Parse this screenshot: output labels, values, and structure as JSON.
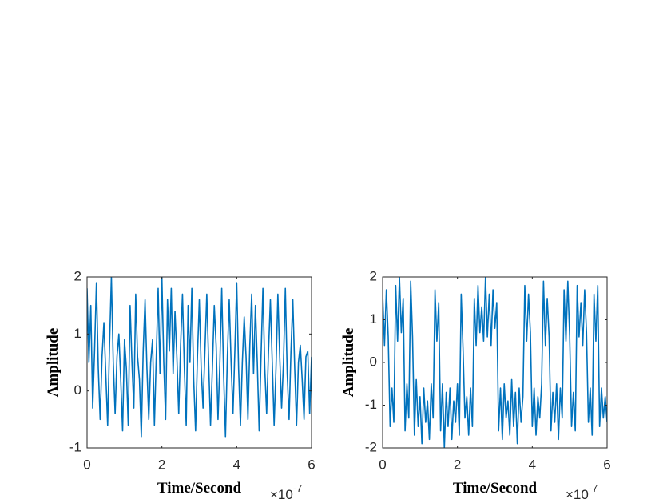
{
  "chart_data": [
    {
      "type": "line",
      "xlabel": "Time/Second",
      "ylabel": "Amplitude",
      "x_exponent": {
        "base": "×10",
        "power": "-7"
      },
      "xlim": [
        0,
        6
      ],
      "xticks": [
        0,
        2,
        4,
        6
      ],
      "ylim": [
        -1,
        2
      ],
      "yticks": [
        -1,
        0,
        1,
        2
      ],
      "grid": false,
      "x": [
        0,
        0.05,
        0.1,
        0.15,
        0.2,
        0.25,
        0.3,
        0.35,
        0.4,
        0.45,
        0.5,
        0.55,
        0.6,
        0.65,
        0.7,
        0.75,
        0.8,
        0.85,
        0.9,
        0.95,
        1,
        1.05,
        1.1,
        1.15,
        1.2,
        1.25,
        1.3,
        1.35,
        1.4,
        1.45,
        1.5,
        1.55,
        1.6,
        1.65,
        1.7,
        1.75,
        1.8,
        1.85,
        1.9,
        1.95,
        2,
        2.05,
        2.1,
        2.15,
        2.2,
        2.25,
        2.3,
        2.35,
        2.4,
        2.45,
        2.5,
        2.55,
        2.6,
        2.65,
        2.7,
        2.75,
        2.8,
        2.85,
        2.9,
        2.95,
        3,
        3.05,
        3.1,
        3.15,
        3.2,
        3.25,
        3.3,
        3.35,
        3.4,
        3.45,
        3.5,
        3.55,
        3.6,
        3.65,
        3.7,
        3.75,
        3.8,
        3.85,
        3.9,
        3.95,
        4,
        4.05,
        4.1,
        4.15,
        4.2,
        4.25,
        4.3,
        4.35,
        4.4,
        4.45,
        4.5,
        4.55,
        4.6,
        4.65,
        4.7,
        4.75,
        4.8,
        4.85,
        4.9,
        4.95,
        5,
        5.05,
        5.1,
        5.15,
        5.2,
        5.25,
        5.3,
        5.35,
        5.4,
        5.45,
        5.5,
        5.55,
        5.6,
        5.65,
        5.7,
        5.75,
        5.8,
        5.85,
        5.9,
        5.95,
        6
      ],
      "series": [
        {
          "color": "#0072bd",
          "values": [
            1.8,
            0.5,
            1.5,
            -0.3,
            0.7,
            1.9,
            0.4,
            -0.5,
            0.6,
            1.2,
            0.3,
            -0.6,
            0.8,
            2.0,
            0.5,
            -0.4,
            0.6,
            1.0,
            0.2,
            -0.7,
            0.9,
            0.4,
            -0.6,
            1.5,
            0.5,
            -0.3,
            1.7,
            0.6,
            0.2,
            -0.8,
            0.7,
            1.6,
            0.4,
            -0.5,
            0.5,
            0.9,
            -0.6,
            0.6,
            1.8,
            0.3,
            2.0,
            0.5,
            -0.5,
            1.6,
            0.7,
            1.8,
            0.3,
            1.4,
            0.6,
            -0.4,
            0.8,
            1.7,
            0.4,
            -0.6,
            1.5,
            0.5,
            1.8,
            0.2,
            -0.7,
            0.6,
            1.6,
            0.4,
            -0.3,
            0.7,
            1.7,
            0.5,
            -0.6,
            0.4,
            1.5,
            0.8,
            -0.5,
            0.5,
            1.8,
            0.3,
            -0.8,
            0.6,
            1.6,
            0.5,
            -0.4,
            0.7,
            1.9,
            0.4,
            -0.6,
            0.5,
            1.3,
            0.6,
            -0.5,
            0.8,
            1.7,
            0.3,
            1.5,
            0.5,
            -0.7,
            0.6,
            1.8,
            0.4,
            -0.4,
            0.7,
            1.6,
            0.5,
            -0.6,
            0.4,
            1.7,
            0.6,
            -0.3,
            0.5,
            1.8,
            0.3,
            -0.5,
            0.7,
            1.6,
            0.4,
            -0.6,
            0.5,
            0.8,
            0.2,
            -0.5,
            0.6,
            0.7,
            -0.4,
            0.6
          ]
        }
      ]
    },
    {
      "type": "line",
      "xlabel": "Time/Second",
      "ylabel": "Amplitude",
      "x_exponent": {
        "base": "×10",
        "power": "-7"
      },
      "xlim": [
        0,
        6
      ],
      "xticks": [
        0,
        2,
        4,
        6
      ],
      "ylim": [
        -2,
        2
      ],
      "yticks": [
        -2,
        -1,
        0,
        1,
        2
      ],
      "grid": false,
      "x": [
        0,
        0.05,
        0.1,
        0.15,
        0.2,
        0.25,
        0.3,
        0.35,
        0.4,
        0.45,
        0.5,
        0.55,
        0.6,
        0.65,
        0.7,
        0.75,
        0.8,
        0.85,
        0.9,
        0.95,
        1,
        1.05,
        1.1,
        1.15,
        1.2,
        1.25,
        1.3,
        1.35,
        1.4,
        1.45,
        1.5,
        1.55,
        1.6,
        1.65,
        1.7,
        1.75,
        1.8,
        1.85,
        1.9,
        1.95,
        2,
        2.05,
        2.1,
        2.15,
        2.2,
        2.25,
        2.3,
        2.35,
        2.4,
        2.45,
        2.5,
        2.55,
        2.6,
        2.65,
        2.7,
        2.75,
        2.8,
        2.85,
        2.9,
        2.95,
        3,
        3.05,
        3.1,
        3.15,
        3.2,
        3.25,
        3.3,
        3.35,
        3.4,
        3.45,
        3.5,
        3.55,
        3.6,
        3.65,
        3.7,
        3.75,
        3.8,
        3.85,
        3.9,
        3.95,
        4,
        4.05,
        4.1,
        4.15,
        4.2,
        4.25,
        4.3,
        4.35,
        4.4,
        4.45,
        4.5,
        4.55,
        4.6,
        4.65,
        4.7,
        4.75,
        4.8,
        4.85,
        4.9,
        4.95,
        5,
        5.05,
        5.1,
        5.15,
        5.2,
        5.25,
        5.3,
        5.35,
        5.4,
        5.45,
        5.5,
        5.55,
        5.6,
        5.65,
        5.7,
        5.75,
        5.8,
        5.85,
        5.9,
        5.95,
        6
      ],
      "series": [
        {
          "color": "#0072bd",
          "values": [
            1.6,
            0.4,
            1.7,
            0.6,
            -1.5,
            -0.6,
            -1.4,
            1.8,
            0.5,
            2.0,
            0.7,
            1.5,
            -1.6,
            -0.5,
            -1.3,
            1.9,
            0.6,
            -1.7,
            -0.4,
            -1.5,
            -0.8,
            -1.9,
            -0.6,
            -1.4,
            -0.9,
            -1.8,
            -0.5,
            -1.3,
            1.7,
            0.5,
            1.4,
            -1.6,
            -0.5,
            -2.0,
            -0.7,
            -1.5,
            -0.6,
            -1.8,
            -0.9,
            -1.4,
            -0.5,
            -1.7,
            1.6,
            0.3,
            -1.3,
            -0.8,
            -1.7,
            -0.6,
            -1.5,
            1.5,
            0.4,
            1.8,
            0.7,
            1.3,
            0.5,
            2.0,
            0.6,
            1.6,
            0.4,
            1.7,
            0.8,
            1.4,
            -1.6,
            -0.6,
            -1.8,
            -0.5,
            -1.3,
            -0.9,
            -1.7,
            -0.4,
            -1.5,
            -0.7,
            -1.9,
            -0.6,
            -1.4,
            -0.8,
            1.8,
            0.5,
            1.6,
            0.7,
            -1.5,
            -0.6,
            -1.7,
            -0.8,
            -1.3,
            -0.5,
            1.9,
            0.4,
            1.5,
            0.6,
            -1.6,
            -0.7,
            -1.4,
            -0.5,
            -1.8,
            -0.6,
            -1.3,
            1.7,
            0.5,
            1.9,
            0.6,
            -1.5,
            -0.7,
            -1.6,
            1.8,
            0.6,
            1.4,
            0.4,
            1.7,
            0.7,
            -1.4,
            -0.6,
            -1.7,
            1.6,
            0.5,
            1.8,
            -1.5,
            -0.6,
            -1.3,
            -0.8,
            -1.4
          ]
        }
      ]
    }
  ]
}
